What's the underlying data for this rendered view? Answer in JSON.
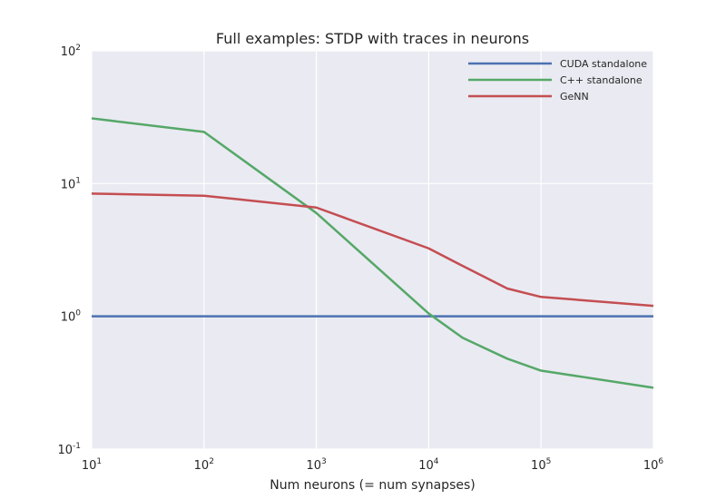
{
  "chart_data": {
    "type": "line",
    "title": "Full examples: STDP with traces in neurons",
    "xlabel": "Num neurons (= num synapses)",
    "ylabel": "",
    "xscale": "log",
    "yscale": "log",
    "xlim": [
      10,
      1000000
    ],
    "ylim": [
      0.1,
      100
    ],
    "grid": true,
    "legend_position": "top-right",
    "x_ticks": [
      {
        "base": "10",
        "exp": "1"
      },
      {
        "base": "10",
        "exp": "2"
      },
      {
        "base": "10",
        "exp": "3"
      },
      {
        "base": "10",
        "exp": "4"
      },
      {
        "base": "10",
        "exp": "5"
      },
      {
        "base": "10",
        "exp": "6"
      }
    ],
    "y_ticks": [
      {
        "base": "10",
        "exp": "2"
      },
      {
        "base": "10",
        "exp": "1"
      },
      {
        "base": "10",
        "exp": "0"
      },
      {
        "base": "10",
        "exp": "-1"
      }
    ],
    "series": [
      {
        "name": "CUDA standalone",
        "color": "#4c72b0",
        "x": [
          10,
          100,
          1000,
          10000,
          20000,
          50000,
          100000,
          1000000
        ],
        "y": [
          1,
          1,
          1,
          1,
          1,
          1,
          1,
          1
        ]
      },
      {
        "name": "C++ standalone",
        "color": "#55a868",
        "x": [
          10,
          100,
          1000,
          10000,
          20000,
          50000,
          100000,
          1000000
        ],
        "y": [
          31,
          24.5,
          6.0,
          1.05,
          0.69,
          0.48,
          0.39,
          0.29
        ]
      },
      {
        "name": "GeNN",
        "color": "#c44e52",
        "x": [
          10,
          100,
          1000,
          10000,
          20000,
          50000,
          100000,
          1000000
        ],
        "y": [
          8.4,
          8.1,
          6.6,
          3.25,
          2.4,
          1.62,
          1.4,
          1.2
        ]
      }
    ]
  }
}
